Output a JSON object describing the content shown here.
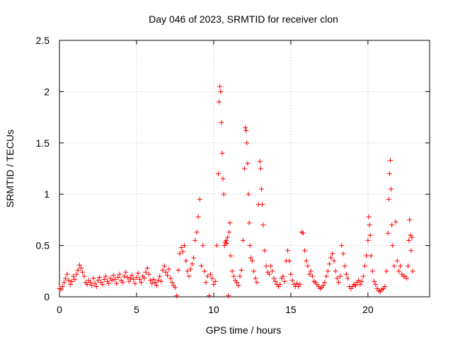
{
  "chart_data": {
    "type": "scatter",
    "title": "Day 046 of 2023, SRMTID for receiver clon",
    "xlabel": "GPS time / hours",
    "ylabel": "SRMTID / TECUs",
    "xlim": [
      0,
      24
    ],
    "ylim": [
      0,
      2.5
    ],
    "xticks": [
      0,
      5,
      10,
      15,
      20
    ],
    "xtick_labels": [
      "0",
      "5",
      "10",
      "15",
      "20"
    ],
    "yticks": [
      0,
      0.5,
      1,
      1.5,
      2,
      2.5
    ],
    "ytick_labels": [
      "0",
      "0.5",
      "1",
      "1.5",
      "2",
      "2.5"
    ],
    "grid": true,
    "marker": "+",
    "color": "#ff0000",
    "series": [
      {
        "name": "SRMTID",
        "points": [
          [
            0.0,
            0.08
          ],
          [
            0.1,
            0.07
          ],
          [
            0.2,
            0.1
          ],
          [
            0.3,
            0.14
          ],
          [
            0.4,
            0.18
          ],
          [
            0.5,
            0.22
          ],
          [
            0.6,
            0.16
          ],
          [
            0.7,
            0.12
          ],
          [
            0.8,
            0.15
          ],
          [
            0.9,
            0.2
          ],
          [
            1.0,
            0.17
          ],
          [
            1.1,
            0.22
          ],
          [
            1.2,
            0.26
          ],
          [
            1.3,
            0.31
          ],
          [
            1.4,
            0.28
          ],
          [
            1.5,
            0.24
          ],
          [
            1.6,
            0.2
          ],
          [
            1.7,
            0.14
          ],
          [
            1.8,
            0.12
          ],
          [
            1.9,
            0.16
          ],
          [
            2.0,
            0.14
          ],
          [
            2.1,
            0.11
          ],
          [
            2.2,
            0.18
          ],
          [
            2.3,
            0.13
          ],
          [
            2.4,
            0.1
          ],
          [
            2.5,
            0.16
          ],
          [
            2.6,
            0.19
          ],
          [
            2.7,
            0.14
          ],
          [
            2.8,
            0.12
          ],
          [
            2.9,
            0.17
          ],
          [
            3.0,
            0.2
          ],
          [
            3.1,
            0.15
          ],
          [
            3.2,
            0.13
          ],
          [
            3.3,
            0.18
          ],
          [
            3.4,
            0.16
          ],
          [
            3.5,
            0.21
          ],
          [
            3.6,
            0.17
          ],
          [
            3.7,
            0.13
          ],
          [
            3.8,
            0.19
          ],
          [
            3.9,
            0.22
          ],
          [
            4.0,
            0.16
          ],
          [
            4.1,
            0.14
          ],
          [
            4.2,
            0.2
          ],
          [
            4.3,
            0.24
          ],
          [
            4.4,
            0.19
          ],
          [
            4.5,
            0.15
          ],
          [
            4.6,
            0.18
          ],
          [
            4.7,
            0.21
          ],
          [
            4.8,
            0.17
          ],
          [
            4.9,
            0.13
          ],
          [
            5.0,
            0.19
          ],
          [
            5.1,
            0.23
          ],
          [
            5.2,
            0.17
          ],
          [
            5.3,
            0.14
          ],
          [
            5.4,
            0.2
          ],
          [
            5.5,
            0.18
          ],
          [
            5.6,
            0.24
          ],
          [
            5.7,
            0.28
          ],
          [
            5.8,
            0.22
          ],
          [
            5.9,
            0.16
          ],
          [
            6.0,
            0.13
          ],
          [
            6.1,
            0.17
          ],
          [
            6.2,
            0.14
          ],
          [
            6.3,
            0.11
          ],
          [
            6.4,
            0.16
          ],
          [
            6.5,
            0.2
          ],
          [
            6.6,
            0.15
          ],
          [
            6.7,
            0.26
          ],
          [
            6.8,
            0.3
          ],
          [
            6.9,
            0.24
          ],
          [
            7.0,
            0.21
          ],
          [
            7.1,
            0.27
          ],
          [
            7.2,
            0.18
          ],
          [
            7.3,
            0.14
          ],
          [
            7.4,
            0.11
          ],
          [
            7.5,
            0.09
          ],
          [
            7.6,
            0.01
          ],
          [
            7.7,
            0.26
          ],
          [
            7.8,
            0.42
          ],
          [
            7.9,
            0.48
          ],
          [
            8.0,
            0.44
          ],
          [
            8.1,
            0.5
          ],
          [
            8.2,
            0.35
          ],
          [
            8.3,
            0.25
          ],
          [
            8.4,
            0.2
          ],
          [
            8.5,
            0.27
          ],
          [
            8.6,
            0.32
          ],
          [
            8.7,
            0.38
          ],
          [
            8.8,
            0.55
          ],
          [
            8.9,
            0.63
          ],
          [
            9.0,
            0.78
          ],
          [
            9.1,
            0.95
          ],
          [
            9.2,
            0.3
          ],
          [
            9.3,
            0.5
          ],
          [
            9.4,
            0.25
          ],
          [
            9.5,
            0.14
          ],
          [
            9.6,
            0.2
          ],
          [
            9.7,
            0.01
          ],
          [
            9.8,
            0.22
          ],
          [
            9.9,
            0.18
          ],
          [
            10.0,
            0.12
          ],
          [
            10.1,
            0.15
          ],
          [
            10.2,
            0.5
          ],
          [
            10.3,
            1.2
          ],
          [
            10.35,
            1.9
          ],
          [
            10.4,
            2.05
          ],
          [
            10.45,
            2.0
          ],
          [
            10.5,
            1.7
          ],
          [
            10.55,
            1.4
          ],
          [
            10.6,
            1.15
          ],
          [
            10.65,
            1.0
          ],
          [
            10.7,
            0.5
          ],
          [
            10.75,
            0.53
          ],
          [
            10.8,
            0.55
          ],
          [
            10.85,
            0.52
          ],
          [
            10.9,
            0.58
          ],
          [
            10.95,
            0.01
          ],
          [
            11.0,
            0.63
          ],
          [
            11.05,
            0.72
          ],
          [
            11.1,
            0.4
          ],
          [
            11.2,
            0.25
          ],
          [
            11.3,
            0.2
          ],
          [
            11.4,
            0.16
          ],
          [
            11.5,
            0.14
          ],
          [
            11.6,
            0.11
          ],
          [
            11.7,
            0.2
          ],
          [
            11.8,
            0.26
          ],
          [
            11.9,
            0.55
          ],
          [
            12.0,
            1.25
          ],
          [
            12.05,
            1.65
          ],
          [
            12.1,
            1.62
          ],
          [
            12.15,
            1.5
          ],
          [
            12.2,
            1.3
          ],
          [
            12.25,
            1.0
          ],
          [
            12.3,
            0.72
          ],
          [
            12.35,
            0.5
          ],
          [
            12.4,
            0.38
          ],
          [
            12.5,
            0.35
          ],
          [
            12.6,
            0.25
          ],
          [
            12.7,
            0.18
          ],
          [
            12.8,
            0.14
          ],
          [
            12.9,
            0.9
          ],
          [
            13.0,
            1.32
          ],
          [
            13.05,
            1.25
          ],
          [
            13.1,
            1.05
          ],
          [
            13.15,
            0.9
          ],
          [
            13.2,
            0.7
          ],
          [
            13.3,
            0.45
          ],
          [
            13.4,
            0.3
          ],
          [
            13.5,
            0.24
          ],
          [
            13.6,
            0.22
          ],
          [
            13.7,
            0.3
          ],
          [
            13.8,
            0.25
          ],
          [
            13.9,
            0.18
          ],
          [
            14.0,
            0.15
          ],
          [
            14.1,
            0.12
          ],
          [
            14.2,
            0.1
          ],
          [
            14.3,
            0.12
          ],
          [
            14.4,
            0.18
          ],
          [
            14.5,
            0.2
          ],
          [
            14.6,
            0.15
          ],
          [
            14.7,
            0.35
          ],
          [
            14.8,
            0.45
          ],
          [
            14.9,
            0.35
          ],
          [
            15.0,
            0.22
          ],
          [
            15.1,
            0.16
          ],
          [
            15.2,
            0.12
          ],
          [
            15.3,
            0.1
          ],
          [
            15.4,
            0.13
          ],
          [
            15.5,
            0.1
          ],
          [
            15.6,
            0.12
          ],
          [
            15.7,
            0.63
          ],
          [
            15.8,
            0.62
          ],
          [
            15.9,
            0.45
          ],
          [
            16.0,
            0.35
          ],
          [
            16.1,
            0.3
          ],
          [
            16.2,
            0.22
          ],
          [
            16.3,
            0.25
          ],
          [
            16.4,
            0.2
          ],
          [
            16.5,
            0.15
          ],
          [
            16.6,
            0.14
          ],
          [
            16.7,
            0.12
          ],
          [
            16.8,
            0.1
          ],
          [
            16.9,
            0.08
          ],
          [
            17.0,
            0.09
          ],
          [
            17.1,
            0.11
          ],
          [
            17.2,
            0.14
          ],
          [
            17.3,
            0.2
          ],
          [
            17.4,
            0.25
          ],
          [
            17.5,
            0.32
          ],
          [
            17.6,
            0.38
          ],
          [
            17.7,
            0.42
          ],
          [
            17.8,
            0.35
          ],
          [
            17.9,
            0.25
          ],
          [
            18.0,
            0.18
          ],
          [
            18.1,
            0.14
          ],
          [
            18.2,
            0.2
          ],
          [
            18.3,
            0.5
          ],
          [
            18.4,
            0.42
          ],
          [
            18.5,
            0.3
          ],
          [
            18.6,
            0.22
          ],
          [
            18.7,
            0.18
          ],
          [
            18.8,
            0.1
          ],
          [
            18.9,
            0.08
          ],
          [
            19.0,
            0.1
          ],
          [
            19.1,
            0.12
          ],
          [
            19.2,
            0.11
          ],
          [
            19.3,
            0.14
          ],
          [
            19.4,
            0.16
          ],
          [
            19.5,
            0.12
          ],
          [
            19.6,
            0.15
          ],
          [
            19.7,
            0.2
          ],
          [
            19.8,
            0.3
          ],
          [
            19.9,
            0.4
          ],
          [
            20.0,
            0.55
          ],
          [
            20.05,
            0.78
          ],
          [
            20.1,
            0.7
          ],
          [
            20.15,
            0.6
          ],
          [
            20.2,
            0.4
          ],
          [
            20.3,
            0.25
          ],
          [
            20.4,
            0.15
          ],
          [
            20.5,
            0.12
          ],
          [
            20.6,
            0.08
          ],
          [
            20.7,
            0.06
          ],
          [
            20.8,
            0.05
          ],
          [
            20.9,
            0.07
          ],
          [
            21.0,
            0.08
          ],
          [
            21.1,
            0.1
          ],
          [
            21.2,
            0.25
          ],
          [
            21.3,
            0.62
          ],
          [
            21.35,
            0.95
          ],
          [
            21.4,
            1.2
          ],
          [
            21.45,
            1.33
          ],
          [
            21.5,
            1.05
          ],
          [
            21.55,
            0.7
          ],
          [
            21.6,
            0.5
          ],
          [
            21.7,
            0.3
          ],
          [
            21.8,
            0.73
          ],
          [
            21.9,
            0.35
          ],
          [
            22.0,
            0.25
          ],
          [
            22.1,
            0.3
          ],
          [
            22.2,
            0.22
          ],
          [
            22.3,
            0.2
          ],
          [
            22.4,
            0.2
          ],
          [
            22.5,
            0.18
          ],
          [
            22.6,
            0.3
          ],
          [
            22.65,
            0.55
          ],
          [
            22.7,
            0.75
          ],
          [
            22.75,
            0.6
          ],
          [
            22.8,
            0.45
          ],
          [
            22.85,
            0.58
          ],
          [
            22.9,
            0.25
          ]
        ]
      }
    ]
  }
}
